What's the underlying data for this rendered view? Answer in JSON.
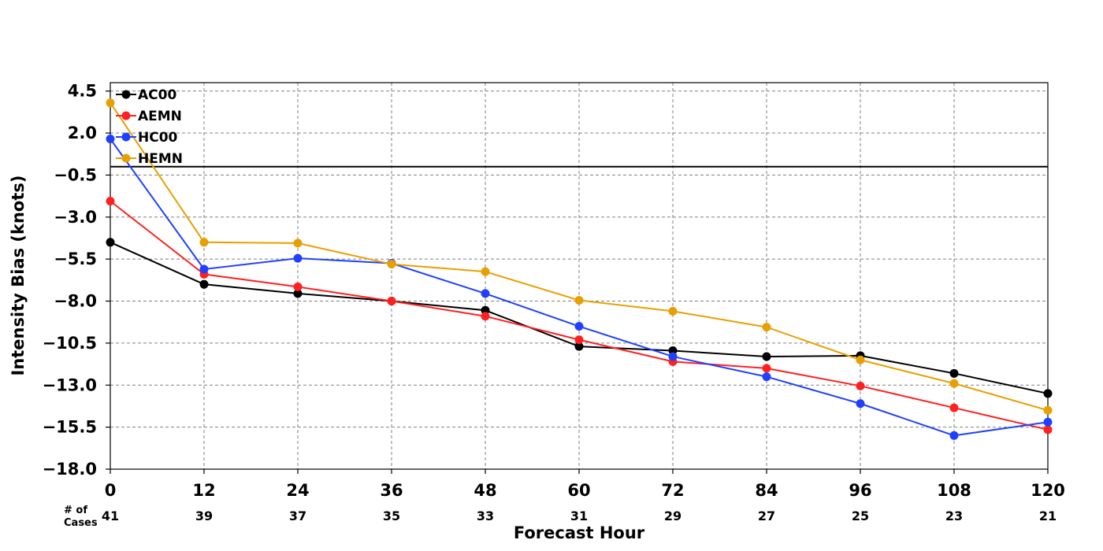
{
  "chart_data": {
    "type": "line",
    "title": "",
    "xlabel": "Forecast Hour",
    "ylabel": "Intensity Bias (knots)",
    "x": [
      0,
      12,
      24,
      36,
      48,
      60,
      72,
      84,
      96,
      108,
      120
    ],
    "x_tick_labels": [
      "0",
      "12",
      "24",
      "36",
      "48",
      "60",
      "72",
      "84",
      "96",
      "108",
      "120"
    ],
    "xlim": [
      0,
      120
    ],
    "ylim": [
      -18.0,
      5.0
    ],
    "y_ticks": [
      4.5,
      2.0,
      -0.5,
      -3.0,
      -5.5,
      -8.0,
      -10.5,
      -13.0,
      -15.5,
      -18.0
    ],
    "y_tick_labels": [
      "4.5",
      "2.0",
      "−0.5",
      "−3.0",
      "−5.5",
      "−8.0",
      "−10.5",
      "−13.0",
      "−15.5",
      "−18.0"
    ],
    "reference_line_y": 0.0,
    "grid": true,
    "legend_position": "top-left",
    "cases_label_line1": "# of",
    "cases_label_line2": "Cases",
    "case_counts": [
      "41",
      "39",
      "37",
      "35",
      "33",
      "31",
      "29",
      "27",
      "25",
      "23",
      "21"
    ],
    "series": [
      {
        "name": "AC00",
        "color": "#000000",
        "values": [
          -4.5,
          -7.0,
          -7.55,
          -8.0,
          -8.55,
          -10.7,
          -10.95,
          -11.3,
          -11.25,
          -12.3,
          -13.5
        ]
      },
      {
        "name": "AEMN",
        "color": "#ff2020",
        "values": [
          -2.05,
          -6.4,
          -7.15,
          -8.0,
          -8.9,
          -10.3,
          -11.6,
          -12.0,
          -13.05,
          -14.35,
          -15.65
        ]
      },
      {
        "name": "HC00",
        "color": "#2040ff",
        "values": [
          1.65,
          -6.1,
          -5.45,
          -5.75,
          -7.55,
          -9.5,
          -11.3,
          -12.5,
          -14.1,
          -16.0,
          -15.2
        ]
      },
      {
        "name": "HEMN",
        "color": "#e8a000",
        "values": [
          3.8,
          -4.5,
          -4.55,
          -5.8,
          -6.25,
          -7.95,
          -8.6,
          -9.55,
          -11.5,
          -12.9,
          -14.5
        ]
      }
    ]
  }
}
